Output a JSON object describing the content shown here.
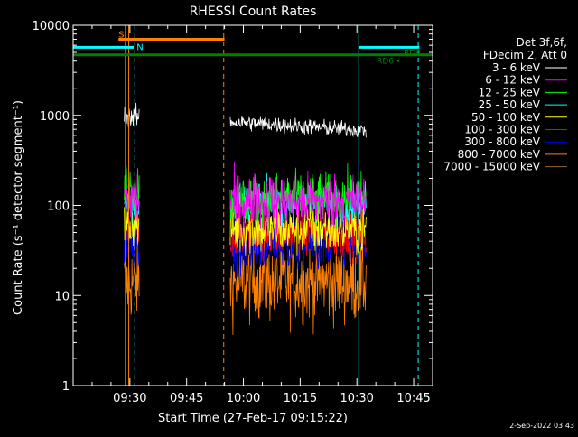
{
  "chart_data": {
    "type": "line",
    "title": "RHESSI Count Rates",
    "xlabel": "Start Time (27-Feb-17 09:15:22)",
    "ylabel": "Count Rate (s⁻¹ detector segment⁻¹)",
    "x_unit": "minutes after 09:15 UT",
    "xlim": [
      0,
      95
    ],
    "ylim": [
      1,
      10000
    ],
    "yscale": "log",
    "xticks": [
      {
        "value": 15,
        "label": "09:30"
      },
      {
        "value": 30,
        "label": "09:45"
      },
      {
        "value": 45,
        "label": "10:00"
      },
      {
        "value": 60,
        "label": "10:15"
      },
      {
        "value": 75,
        "label": "10:30"
      },
      {
        "value": 90,
        "label": "10:45"
      }
    ],
    "yticks": [
      {
        "value": 1,
        "label": "1"
      },
      {
        "value": 10,
        "label": "10"
      },
      {
        "value": 100,
        "label": "100"
      },
      {
        "value": 1000,
        "label": "1000"
      },
      {
        "value": 10000,
        "label": "10000"
      }
    ],
    "legend_header": [
      "Det 3f,6f,",
      "FDecim 2, Att 0"
    ],
    "legend_position": "right",
    "series": [
      {
        "name": "3 - 6 keV",
        "color": "#ffffff",
        "segments": [
          {
            "x0": 13.5,
            "x1": 17.5,
            "level": 950,
            "noise": 0.12
          },
          {
            "x0": 41.5,
            "x1": 77.5,
            "level": 850,
            "noise": 0.09,
            "end_level": 680
          }
        ]
      },
      {
        "name": "6 - 12 keV",
        "color": "#ff00ff",
        "segments": [
          {
            "x0": 13.5,
            "x1": 17.5,
            "level": 120,
            "noise": 0.35
          },
          {
            "x0": 41.5,
            "x1": 77.5,
            "level": 110,
            "noise": 0.32
          }
        ]
      },
      {
        "name": "12 - 25 keV",
        "color": "#00ff00",
        "segments": [
          {
            "x0": 13.5,
            "x1": 17.5,
            "level": 160,
            "noise": 0.3
          },
          {
            "x0": 41.5,
            "x1": 77.5,
            "level": 120,
            "noise": 0.28
          }
        ]
      },
      {
        "name": "25 - 50 keV",
        "color": "#00ffff",
        "segments": [
          {
            "x0": 13.5,
            "x1": 17.5,
            "level": 110,
            "noise": 0.3
          },
          {
            "x0": 41.5,
            "x1": 77.5,
            "level": 110,
            "noise": 0.22
          }
        ]
      },
      {
        "name": "50 - 100 keV",
        "color": "#ffff00",
        "segments": [
          {
            "x0": 13.5,
            "x1": 17.5,
            "level": 60,
            "noise": 0.3
          },
          {
            "x0": 41.5,
            "x1": 77.5,
            "level": 55,
            "noise": 0.3
          }
        ]
      },
      {
        "name": "100 - 300 keV",
        "color": "#ff0000",
        "segments": [
          {
            "x0": 13.5,
            "x1": 17.5,
            "level": 55,
            "noise": 0.28
          },
          {
            "x0": 41.5,
            "x1": 77.5,
            "level": 50,
            "noise": 0.28
          }
        ]
      },
      {
        "name": "300 - 800 keV",
        "color": "#0000ff",
        "segments": [
          {
            "x0": 13.5,
            "x1": 17.5,
            "level": 35,
            "noise": 0.28
          },
          {
            "x0": 41.5,
            "x1": 77.5,
            "level": 35,
            "noise": 0.28
          }
        ]
      },
      {
        "name": "800 - 7000 keV",
        "color": "#ff8000",
        "segments": [
          {
            "x0": 13.5,
            "x1": 17.5,
            "level": 14,
            "noise": 0.45
          },
          {
            "x0": 41.5,
            "x1": 77.5,
            "level": 14,
            "noise": 0.45
          }
        ]
      },
      {
        "name": "7000 - 15000 keV",
        "color": "#996633",
        "segments": []
      }
    ],
    "annotations": {
      "attenuator_bar": {
        "label": "S",
        "color": "#ff8000",
        "x0": 12,
        "x1": 40,
        "y": 7000
      },
      "night_bars": {
        "label": "N",
        "color": "#00ffff",
        "segments": [
          [
            0,
            16
          ],
          [
            75.5,
            91.5
          ]
        ],
        "y": 5700
      },
      "decimation_bar": {
        "label": "RD6",
        "color": "#008000",
        "x0": 0,
        "x1": 95,
        "y": 4700
      },
      "decimation_label2": "RD0",
      "vlines": [
        {
          "x": 0,
          "color": "#00ffff",
          "style": "solid"
        },
        {
          "x": 13.8,
          "color": "#ff8000",
          "style": "solid"
        },
        {
          "x": 14.7,
          "color": "#ff8000",
          "style": "solid"
        },
        {
          "x": 16.3,
          "color": "#00ffff",
          "style": "dashed"
        },
        {
          "x": 39.8,
          "color": "#ff8000",
          "style": "dashed"
        },
        {
          "x": 75.5,
          "color": "#00ffff",
          "style": "solid"
        },
        {
          "x": 91.2,
          "color": "#00ffff",
          "style": "dashed"
        }
      ]
    }
  },
  "footer": {
    "timestamp": "2-Sep-2022 03:43"
  }
}
